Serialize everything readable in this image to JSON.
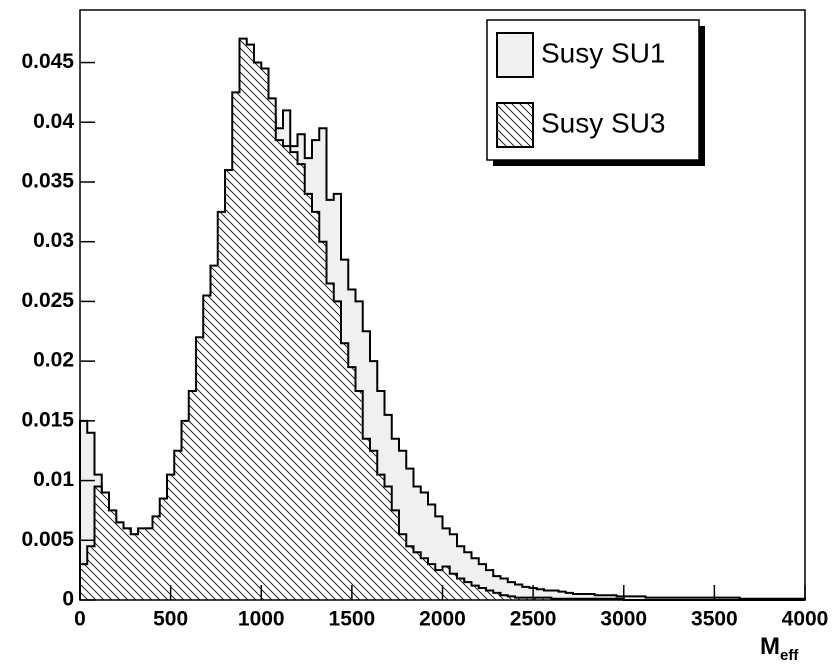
{
  "chart_data": {
    "type": "histogram",
    "x_label": "M",
    "x_label_sub": "eff",
    "bins": [
      0,
      40,
      80,
      120,
      160,
      200,
      240,
      280,
      320,
      360,
      400,
      440,
      480,
      520,
      560,
      600,
      640,
      680,
      720,
      760,
      800,
      840,
      880,
      920,
      960,
      1000,
      1040,
      1080,
      1120,
      1160,
      1200,
      1240,
      1280,
      1320,
      1360,
      1400,
      1440,
      1480,
      1520,
      1560,
      1600,
      1640,
      1680,
      1720,
      1760,
      1800,
      1840,
      1880,
      1920,
      1960,
      2000,
      2040,
      2080,
      2120,
      2160,
      2200,
      2240,
      2280,
      2320,
      2360,
      2400,
      2440,
      2480,
      2520,
      2560,
      2600,
      2640,
      2680,
      2720,
      2760,
      2800,
      2840,
      2880,
      2920,
      2960,
      3000,
      3040,
      3080,
      3120,
      3160,
      3200,
      3240,
      3280,
      3320,
      3360,
      3400,
      3440,
      3480,
      3520,
      3560,
      3600,
      3640,
      3680,
      3720,
      3760,
      3800,
      3840,
      3880,
      3920,
      3960,
      4000
    ],
    "series": [
      {
        "name": "Susy SU1",
        "color": "#f0f0f0",
        "hatch": false,
        "values": [
          0.015,
          0.014,
          0.0105,
          0.0085,
          0.007,
          0.0065,
          0.006,
          0.0055,
          0.0055,
          0.006,
          0.0065,
          0.007,
          0.0085,
          0.0095,
          0.0105,
          0.012,
          0.0145,
          0.0165,
          0.019,
          0.022,
          0.024,
          0.0275,
          0.0305,
          0.0335,
          0.036,
          0.0385,
          0.0405,
          0.0395,
          0.041,
          0.038,
          0.039,
          0.037,
          0.0385,
          0.0395,
          0.0335,
          0.034,
          0.0285,
          0.026,
          0.025,
          0.0225,
          0.02,
          0.0175,
          0.0155,
          0.0135,
          0.0125,
          0.011,
          0.0095,
          0.009,
          0.008,
          0.007,
          0.006,
          0.0055,
          0.0045,
          0.004,
          0.0035,
          0.003,
          0.0025,
          0.002,
          0.0018,
          0.0015,
          0.0013,
          0.0011,
          0.001,
          0.0009,
          0.0008,
          0.0008,
          0.0007,
          0.0006,
          0.0005,
          0.0005,
          0.0005,
          0.0004,
          0.0004,
          0.0004,
          0.0003,
          0.0003,
          0.0003,
          0.0003,
          0.0002,
          0.0002,
          0.0002,
          0.0002,
          0.0002,
          0.0002,
          0.0002,
          0.0002,
          0.0002,
          0.0002,
          0.0002,
          0.0002,
          0.0002,
          0.0001,
          0.0001,
          0.0001,
          0.0001,
          0.0001,
          0.0001,
          0.0001,
          0.0001,
          0.0001
        ]
      },
      {
        "name": "Susy SU3",
        "color": "#000000",
        "hatch": true,
        "values": [
          0.003,
          0.0045,
          0.0095,
          0.009,
          0.0075,
          0.0065,
          0.006,
          0.0055,
          0.006,
          0.006,
          0.007,
          0.0085,
          0.0105,
          0.0125,
          0.015,
          0.0175,
          0.022,
          0.0255,
          0.028,
          0.0325,
          0.036,
          0.0425,
          0.047,
          0.0465,
          0.045,
          0.0445,
          0.042,
          0.0385,
          0.038,
          0.0375,
          0.0365,
          0.034,
          0.0325,
          0.03,
          0.0265,
          0.025,
          0.0215,
          0.0195,
          0.0175,
          0.0135,
          0.0125,
          0.0105,
          0.0095,
          0.0075,
          0.0055,
          0.0045,
          0.004,
          0.0035,
          0.003,
          0.0025,
          0.0028,
          0.0022,
          0.0018,
          0.0015,
          0.0012,
          0.001,
          0.0008,
          0.0006,
          0.0004,
          0.0003,
          0.0002,
          0.0002,
          0.0002,
          0.0002,
          0.0002,
          0.0001,
          0.0001,
          0.0001,
          0.0001,
          0.0001,
          0.0001,
          0.0001,
          0.0001,
          0.0001,
          0.0001,
          0,
          0,
          0,
          0,
          0,
          0,
          0,
          0,
          0,
          0,
          0,
          0,
          0,
          0,
          0,
          0,
          0,
          0,
          0,
          0,
          0,
          0,
          0,
          0,
          0
        ]
      }
    ],
    "xlim": [
      0,
      4000
    ],
    "xticks": [
      0,
      500,
      1000,
      1500,
      2000,
      2500,
      3000,
      3500,
      4000
    ],
    "ylim": [
      0,
      0.0494
    ],
    "yticks": [
      0,
      0.005,
      0.01,
      0.015,
      0.02,
      0.025,
      0.03,
      0.035,
      0.04,
      0.045
    ],
    "grid": false,
    "legend": "top-right"
  }
}
